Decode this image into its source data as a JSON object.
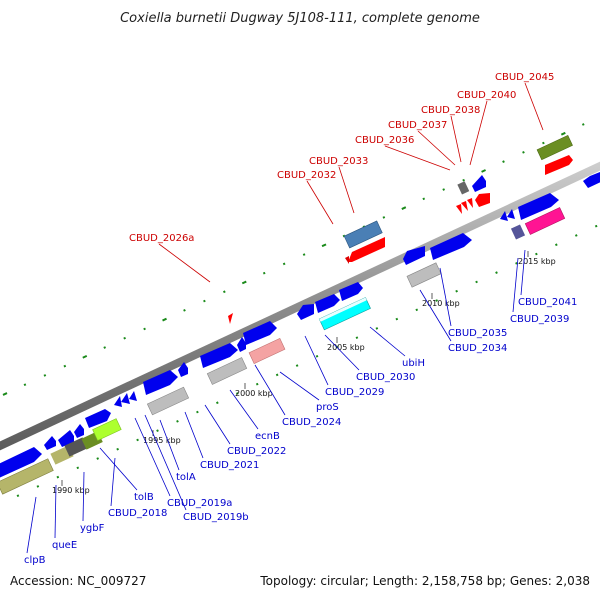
{
  "title": "Coxiella burnetii Dugway 5J108-111, complete genome",
  "footer": {
    "accession": "Accession: NC_009727",
    "summary": "Topology: circular; Length: 2,158,758 bp; Genes: 2,038"
  },
  "colors": {
    "forward_cds": "#0000ee",
    "reverse_cds": "#ff0000",
    "backbone": "#8c8c8c",
    "gc_dot": "#1a8a1a",
    "forward_label": "#0000cc",
    "reverse_label": "#cc0000"
  },
  "scale": [
    {
      "label": "1990 kbp"
    },
    {
      "label": "1995 kbp"
    },
    {
      "label": "2000 kbp"
    },
    {
      "label": "2005 kbp"
    },
    {
      "label": "2010 kbp"
    },
    {
      "label": "2015 kbp"
    }
  ],
  "labels_top": [
    {
      "text": "CBUD_2026a"
    },
    {
      "text": "CBUD_2032"
    },
    {
      "text": "CBUD_2033"
    },
    {
      "text": "CBUD_2036"
    },
    {
      "text": "CBUD_2037"
    },
    {
      "text": "CBUD_2038"
    },
    {
      "text": "CBUD_2040"
    },
    {
      "text": "CBUD_2045"
    }
  ],
  "labels_bottom": [
    {
      "text": "clpB"
    },
    {
      "text": "queE"
    },
    {
      "text": "ygbF"
    },
    {
      "text": "tolB"
    },
    {
      "text": "CBUD_2018"
    },
    {
      "text": "CBUD_2019a"
    },
    {
      "text": "CBUD_2019b"
    },
    {
      "text": "tolA"
    },
    {
      "text": "CBUD_2021"
    },
    {
      "text": "CBUD_2022"
    },
    {
      "text": "ecnB"
    },
    {
      "text": "CBUD_2024"
    },
    {
      "text": "proS"
    },
    {
      "text": "CBUD_2029"
    },
    {
      "text": "CBUD_2030"
    },
    {
      "text": "ubiH"
    },
    {
      "text": "CBUD_2034"
    },
    {
      "text": "CBUD_2035"
    },
    {
      "text": "CBUD_2039"
    },
    {
      "text": "CBUD_2041"
    }
  ]
}
